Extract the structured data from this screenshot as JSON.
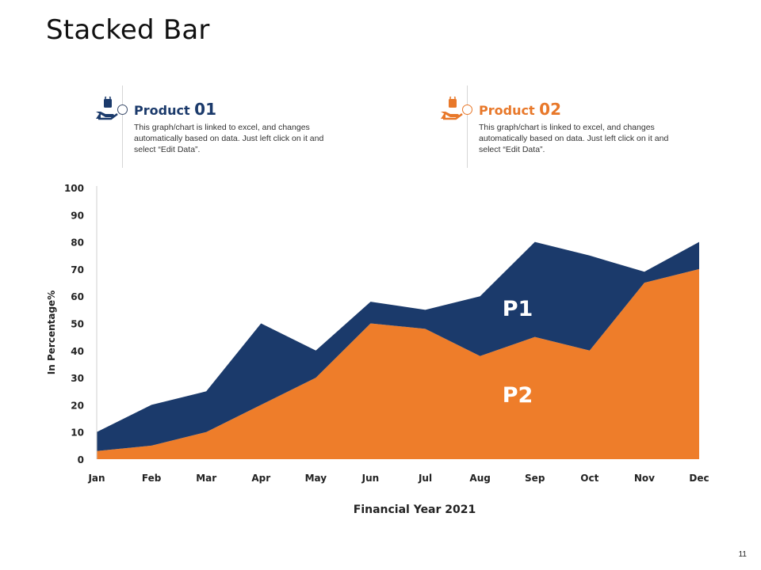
{
  "slide": {
    "title": "Stacked Bar",
    "page_number": "11"
  },
  "products": [
    {
      "label": "Product",
      "number": "01",
      "description": "This graph/chart is linked to excel, and changes automatically based on data. Just left click on it and select “Edit Data”.",
      "color": "#1b3a6b",
      "icon": "hand-holding-bag-icon"
    },
    {
      "label": "Product",
      "number": "02",
      "description": "This graph/chart is linked to excel, and changes automatically based on data. Just left click on it and select “Edit Data”.",
      "color": "#e8782a",
      "icon": "hand-holding-bag-icon"
    }
  ],
  "chart_data": {
    "type": "area",
    "stacked": true,
    "categories": [
      "Jan",
      "Feb",
      "Mar",
      "Apr",
      "May",
      "Jun",
      "Jul",
      "Aug",
      "Sep",
      "Oct",
      "Nov",
      "Dec"
    ],
    "series": [
      {
        "name": "P2",
        "color": "#ee7d2a",
        "values": [
          3,
          5,
          10,
          20,
          30,
          50,
          48,
          38,
          45,
          40,
          65,
          70
        ]
      },
      {
        "name": "P1",
        "color": "#1b3a6b",
        "values": [
          7,
          15,
          15,
          30,
          10,
          8,
          7,
          22,
          35,
          35,
          4,
          10
        ]
      }
    ],
    "xlabel": "Financial Year 2021",
    "ylabel": "In Percentage%",
    "ylim": [
      0,
      100
    ],
    "yticks": [
      "0",
      "10",
      "20",
      "30",
      "40",
      "50",
      "60",
      "70",
      "80",
      "90",
      "100"
    ],
    "grid": false,
    "legend": "none"
  }
}
